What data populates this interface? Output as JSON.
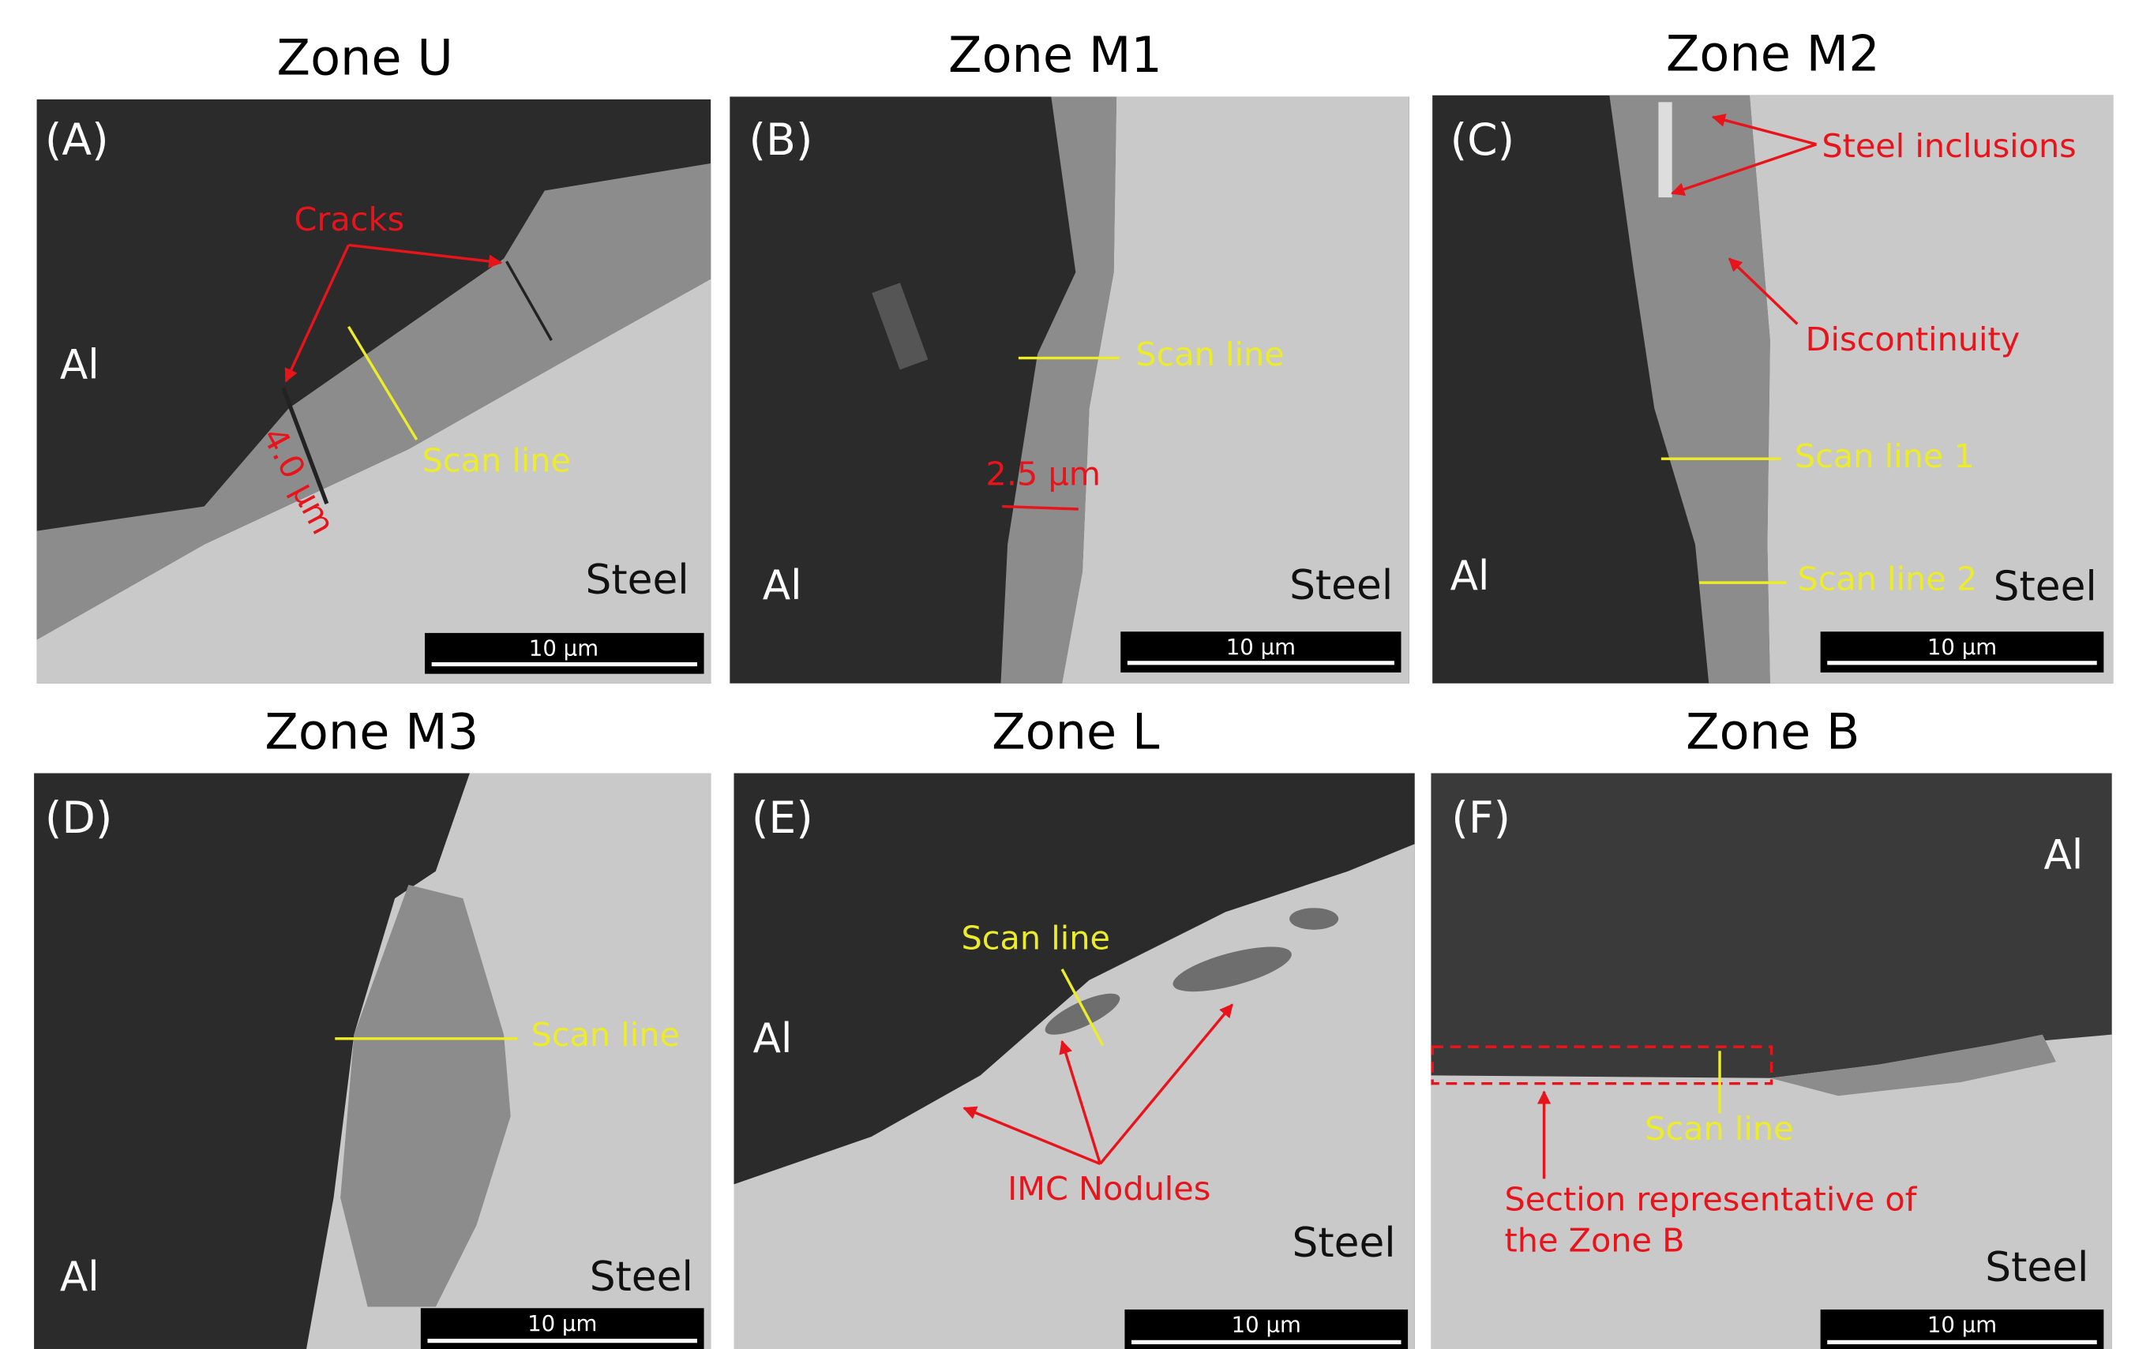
{
  "panels": [
    {
      "title": "Zone U",
      "letter": "(A)",
      "materials": [
        "Al",
        "Steel"
      ],
      "annotations": [
        "Cracks",
        "Scan line",
        "4.0 µm"
      ],
      "scale_bar": "10 µm"
    },
    {
      "title": "Zone M1",
      "letter": "(B)",
      "materials": [
        "Al",
        "Steel"
      ],
      "annotations": [
        "Scan line",
        "2.5 µm"
      ],
      "scale_bar": "10 µm"
    },
    {
      "title": "Zone M2",
      "letter": "(C)",
      "materials": [
        "Al",
        "Steel"
      ],
      "annotations": [
        "Steel inclusions",
        "Discontinuity",
        "Scan line 1",
        "Scan line 2"
      ],
      "scale_bar": "10 µm"
    },
    {
      "title": "Zone M3",
      "letter": "(D)",
      "materials": [
        "Al",
        "Steel"
      ],
      "annotations": [
        "Scan line"
      ],
      "scale_bar": "10 µm"
    },
    {
      "title": "Zone L",
      "letter": "(E)",
      "materials": [
        "Al",
        "Steel"
      ],
      "annotations": [
        "Scan line",
        "IMC Nodules"
      ],
      "scale_bar": "10 µm"
    },
    {
      "title": "Zone B",
      "letter": "(F)",
      "materials": [
        "Al",
        "Steel"
      ],
      "annotations": [
        "Scan line",
        "Section representative of",
        "the Zone B"
      ],
      "scale_bar": "10 µm"
    }
  ]
}
